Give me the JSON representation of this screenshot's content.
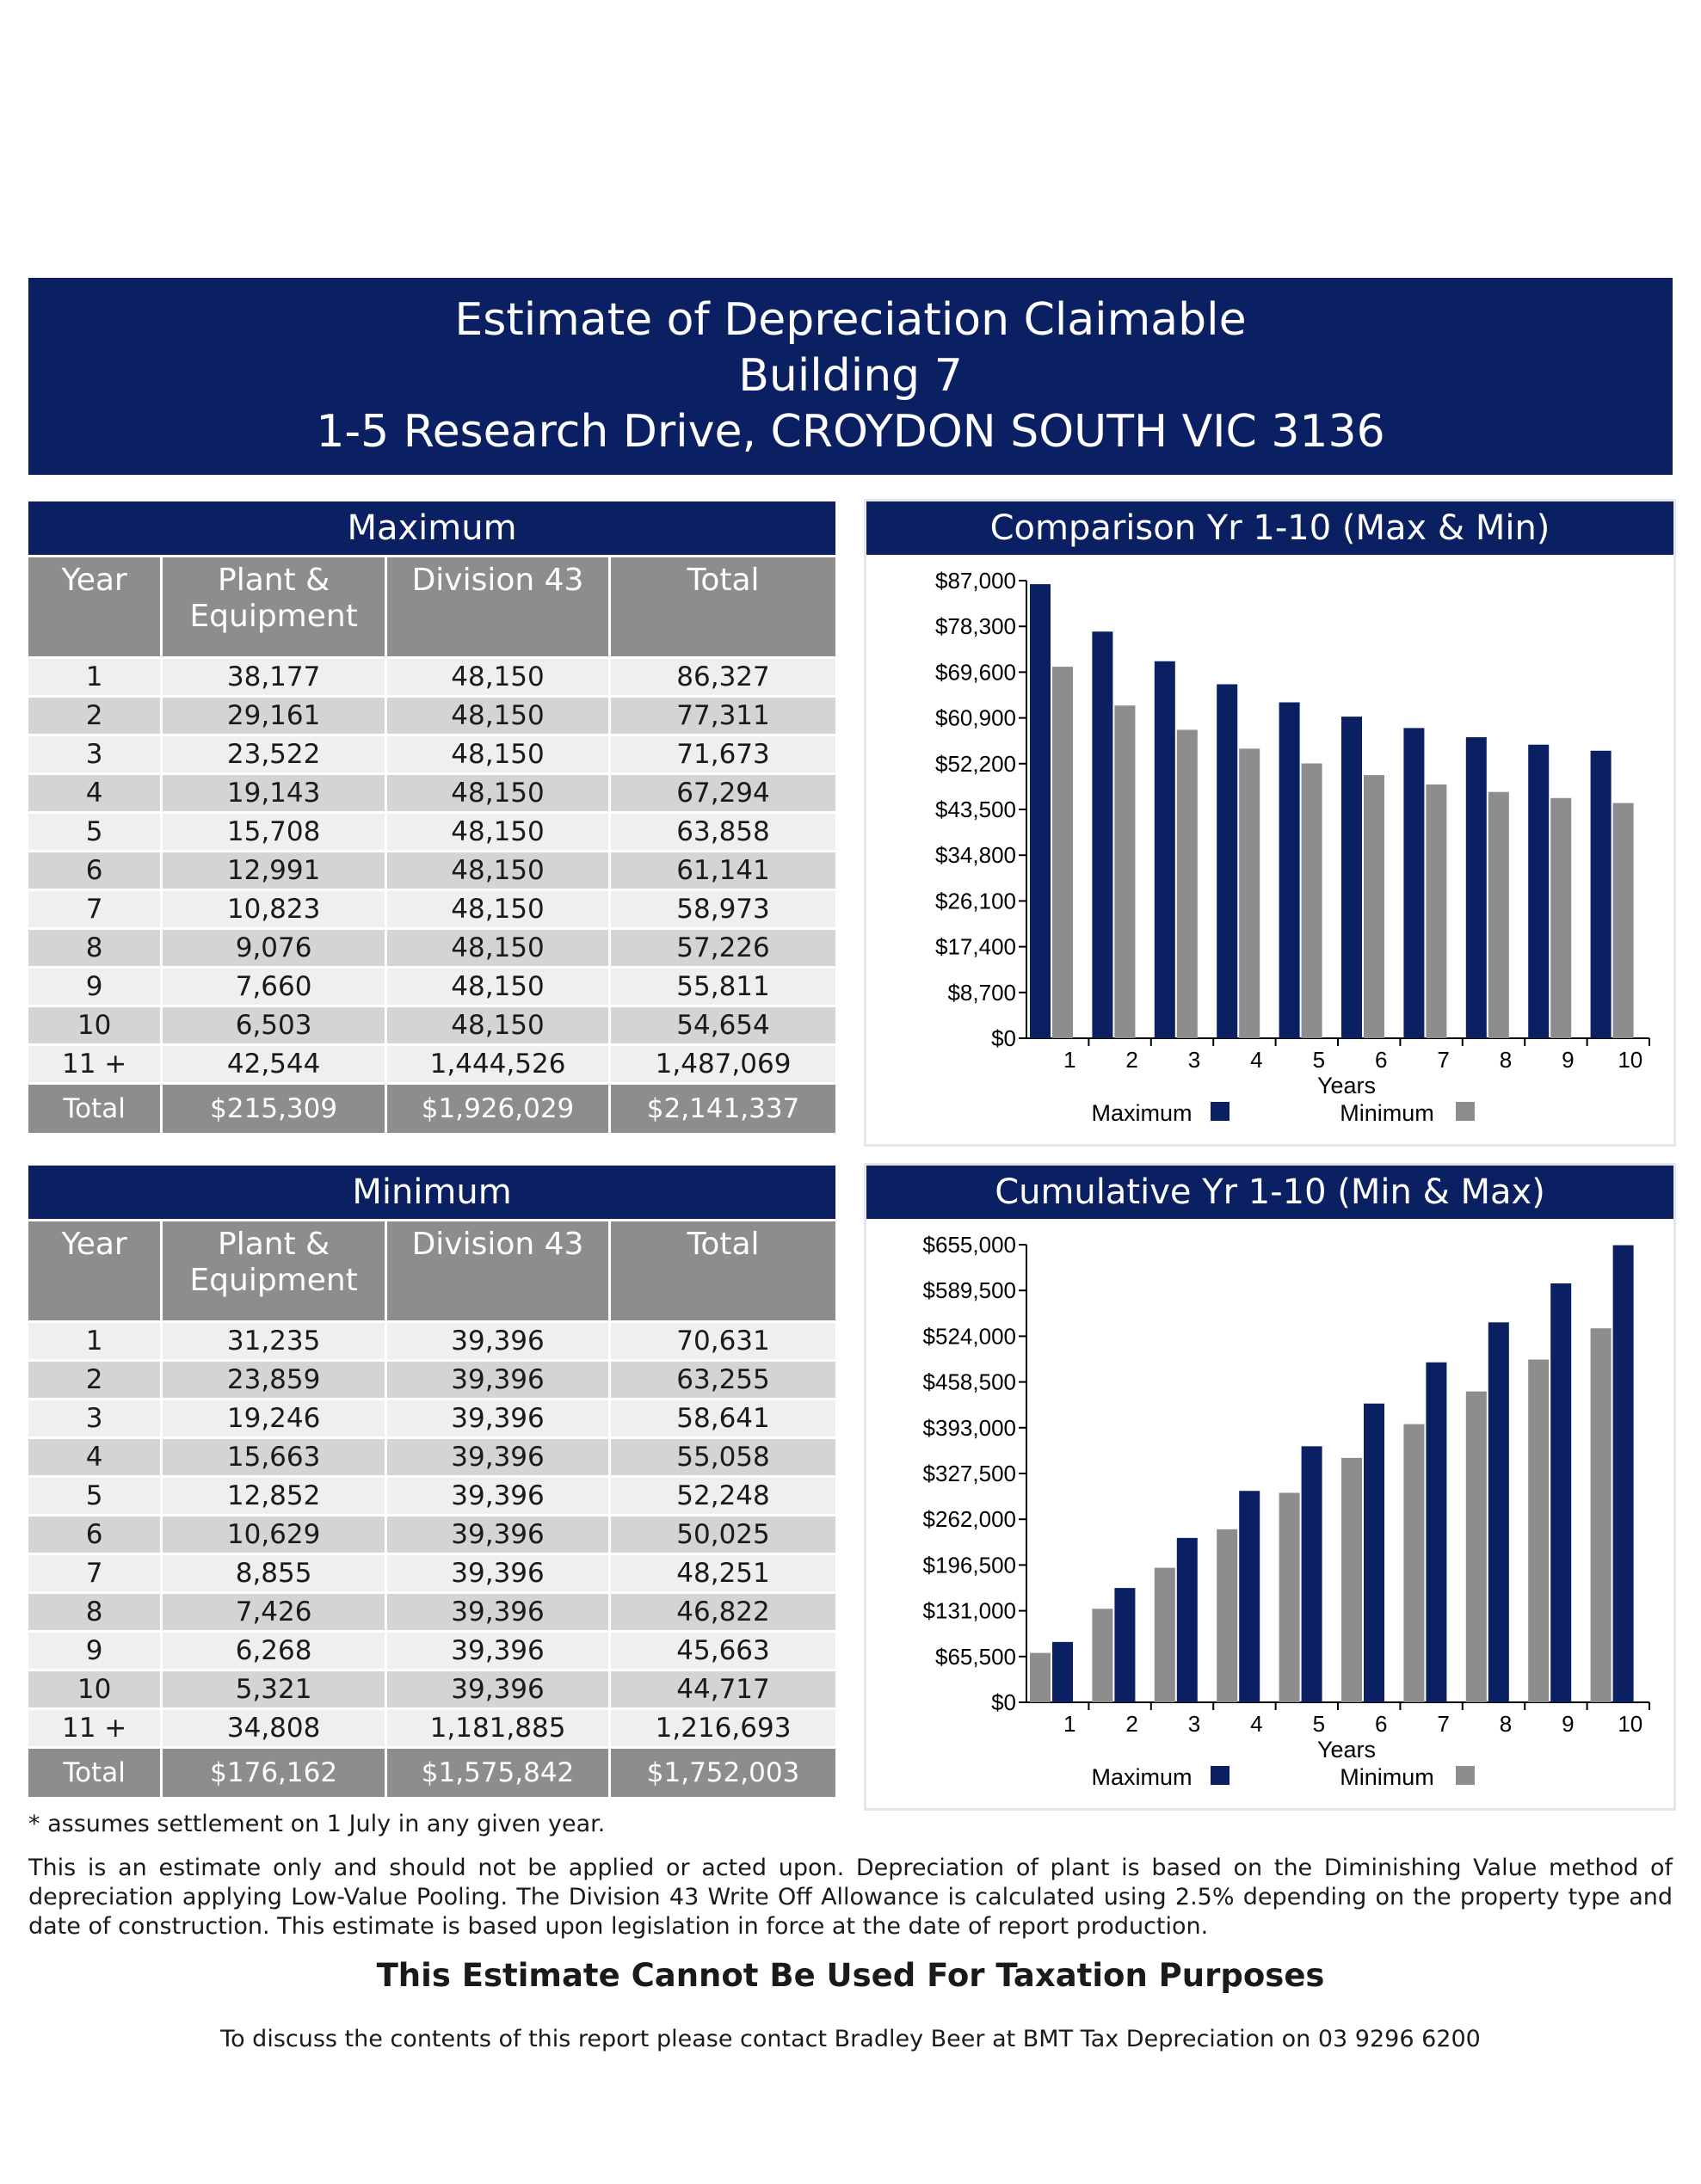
{
  "header": {
    "line1": "Estimate of Depreciation Claimable",
    "line2": "Building 7",
    "line3": "1-5 Research Drive, CROYDON SOUTH VIC 3136"
  },
  "tables": {
    "columns": [
      "Year",
      "Plant & Equipment",
      "Division 43",
      "Total"
    ],
    "maximum": {
      "title": "Maximum",
      "rows": [
        [
          "1",
          "38,177",
          "48,150",
          "86,327"
        ],
        [
          "2",
          "29,161",
          "48,150",
          "77,311"
        ],
        [
          "3",
          "23,522",
          "48,150",
          "71,673"
        ],
        [
          "4",
          "19,143",
          "48,150",
          "67,294"
        ],
        [
          "5",
          "15,708",
          "48,150",
          "63,858"
        ],
        [
          "6",
          "12,991",
          "48,150",
          "61,141"
        ],
        [
          "7",
          "10,823",
          "48,150",
          "58,973"
        ],
        [
          "8",
          "9,076",
          "48,150",
          "57,226"
        ],
        [
          "9",
          "7,660",
          "48,150",
          "55,811"
        ],
        [
          "10",
          "6,503",
          "48,150",
          "54,654"
        ],
        [
          "11 +",
          "42,544",
          "1,444,526",
          "1,487,069"
        ]
      ],
      "total": [
        "Total",
        "$215,309",
        "$1,926,029",
        "$2,141,337"
      ]
    },
    "minimum": {
      "title": "Minimum",
      "rows": [
        [
          "1",
          "31,235",
          "39,396",
          "70,631"
        ],
        [
          "2",
          "23,859",
          "39,396",
          "63,255"
        ],
        [
          "3",
          "19,246",
          "39,396",
          "58,641"
        ],
        [
          "4",
          "15,663",
          "39,396",
          "55,058"
        ],
        [
          "5",
          "12,852",
          "39,396",
          "52,248"
        ],
        [
          "6",
          "10,629",
          "39,396",
          "50,025"
        ],
        [
          "7",
          "8,855",
          "39,396",
          "48,251"
        ],
        [
          "8",
          "7,426",
          "39,396",
          "46,822"
        ],
        [
          "9",
          "6,268",
          "39,396",
          "45,663"
        ],
        [
          "10",
          "5,321",
          "39,396",
          "44,717"
        ],
        [
          "11 +",
          "34,808",
          "1,181,885",
          "1,216,693"
        ]
      ],
      "total": [
        "Total",
        "$176,162",
        "$1,575,842",
        "$1,752,003"
      ]
    }
  },
  "colors": {
    "navy": "#0b2063",
    "gray": "#8d8d8d"
  },
  "chart_data": [
    {
      "type": "bar",
      "title": "Comparison Yr 1-10 (Max & Min)",
      "xlabel": "Years",
      "ylabel": "",
      "categories": [
        "1",
        "2",
        "3",
        "4",
        "5",
        "6",
        "7",
        "8",
        "9",
        "10"
      ],
      "ylim": [
        0,
        87000
      ],
      "yticks": [
        "$0",
        "$8,700",
        "$17,400",
        "$26,100",
        "$34,800",
        "$43,500",
        "$52,200",
        "$60,900",
        "$69,600",
        "$78,300",
        "$87,000"
      ],
      "legend_order": [
        "Maximum",
        "Minimum"
      ],
      "bar_order": [
        "Maximum",
        "Minimum"
      ],
      "series": [
        {
          "name": "Maximum",
          "color": "#0b2063",
          "values": [
            86327,
            77311,
            71673,
            67294,
            63858,
            61141,
            58973,
            57226,
            55811,
            54654
          ]
        },
        {
          "name": "Minimum",
          "color": "#8d8d8d",
          "values": [
            70631,
            63255,
            58641,
            55058,
            52248,
            50025,
            48251,
            46822,
            45663,
            44717
          ]
        }
      ]
    },
    {
      "type": "bar",
      "title": "Cumulative Yr 1-10 (Min & Max)",
      "xlabel": "Years",
      "ylabel": "",
      "categories": [
        "1",
        "2",
        "3",
        "4",
        "5",
        "6",
        "7",
        "8",
        "9",
        "10"
      ],
      "ylim": [
        0,
        655000
      ],
      "yticks": [
        "$0",
        "$65,500",
        "$131,000",
        "$196,500",
        "$262,000",
        "$327,500",
        "$393,000",
        "$458,500",
        "$524,000",
        "$589,500",
        "$655,000"
      ],
      "legend_order": [
        "Maximum",
        "Minimum"
      ],
      "bar_order": [
        "Minimum",
        "Maximum"
      ],
      "series": [
        {
          "name": "Maximum",
          "color": "#0b2063",
          "values": [
            86327,
            163638,
            235311,
            302605,
            366463,
            427604,
            486577,
            543803,
            599614,
            654268
          ]
        },
        {
          "name": "Minimum",
          "color": "#8d8d8d",
          "values": [
            70631,
            133886,
            192527,
            247585,
            299833,
            349858,
            398109,
            444931,
            490594,
            535311
          ]
        }
      ]
    }
  ],
  "footnote": "* assumes settlement on 1 July in any given year.",
  "disclaimer": "This is an estimate only and should not be applied or acted upon. Depreciation of plant is based on the Diminishing Value method of depreciation applying Low-Value Pooling. The Division 43 Write Off Allowance is calculated using 2.5% depending on the property type and date of construction. This estimate is based upon legislation in force at the date of report production.",
  "warning": "This Estimate Cannot Be Used For Taxation Purposes",
  "contact": "To discuss the contents of this report please contact Bradley Beer at BMT Tax Depreciation on 03 9296 6200"
}
